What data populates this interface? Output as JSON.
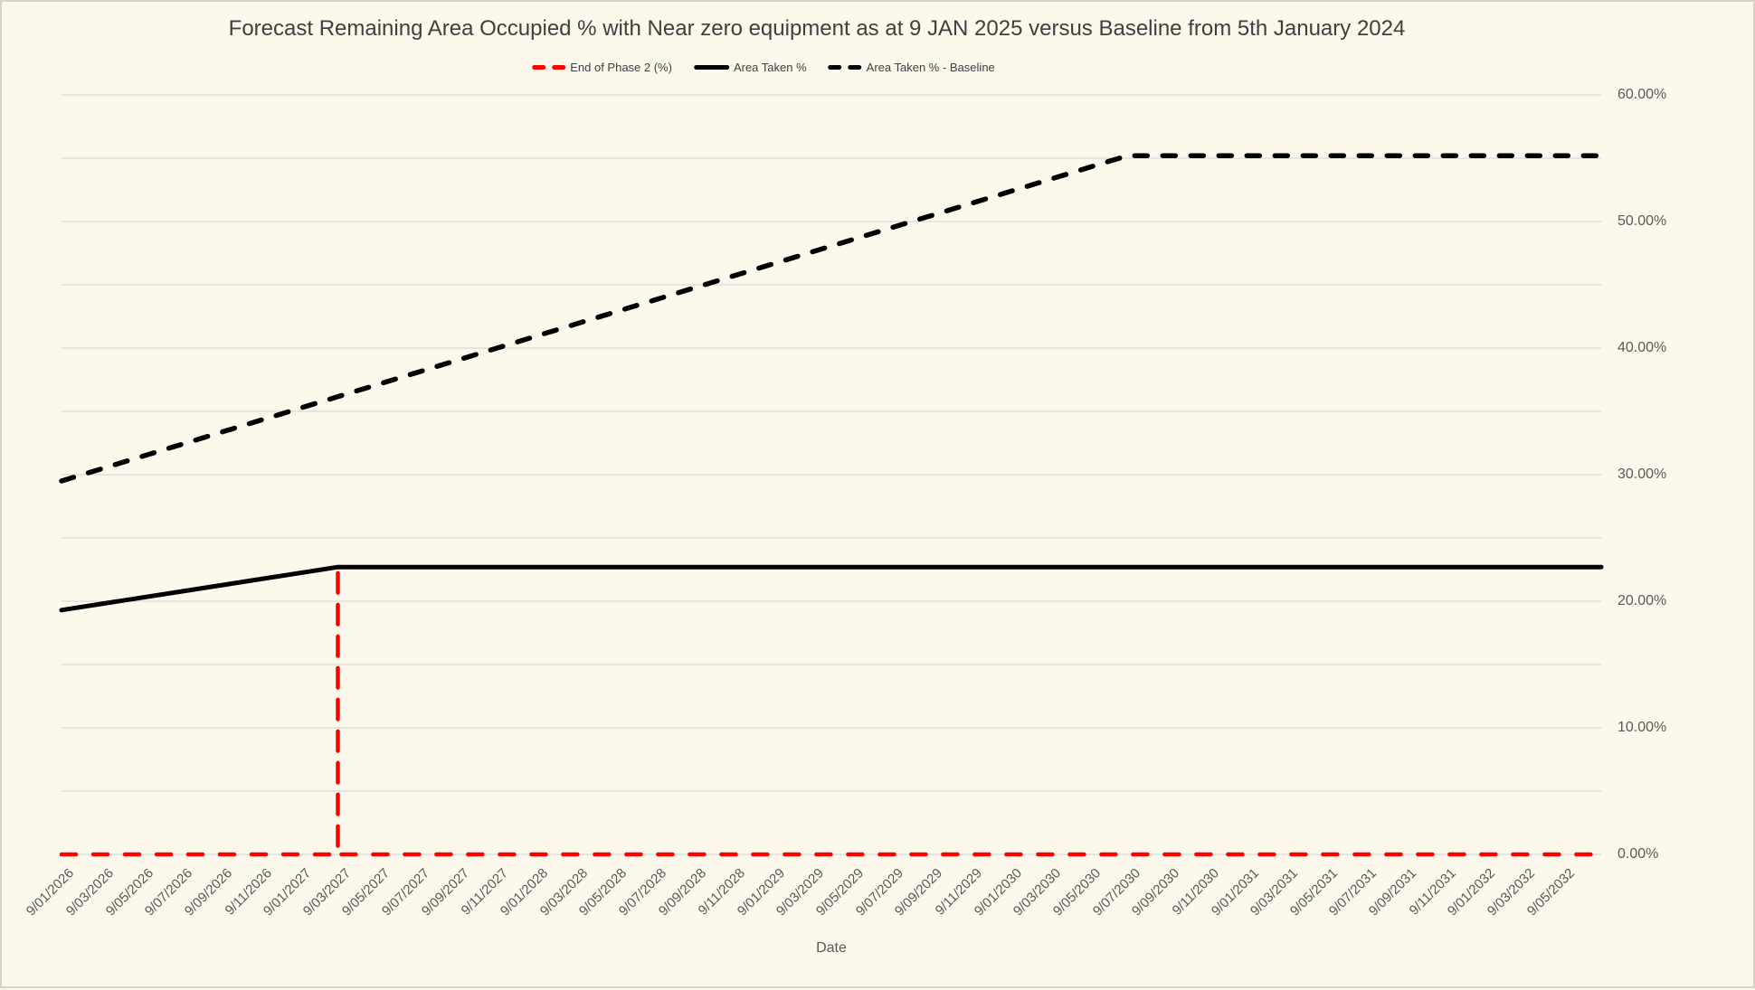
{
  "title": "Forecast Remaining Area Occupied % with Near zero equipment as at 9 JAN 2025 versus Baseline from 5th January 2024",
  "x_axis_title": "Date",
  "legend": {
    "position": "top-center",
    "items": [
      {
        "label": "End of Phase 2 (%)"
      },
      {
        "label": "Area Taken %"
      },
      {
        "label": "Area Taken % - Baseline"
      }
    ]
  },
  "colors": {
    "background": "#FDF8EC",
    "gridline": "#D9D9D9",
    "axis_text": "#595959",
    "title_text": "#3F3F3F",
    "red_series": "#FF0000",
    "black_series": "#000000"
  },
  "chart_data": {
    "type": "line",
    "title": "Forecast Remaining Area Occupied % with Near zero equipment as at 9 JAN 2025 versus Baseline from 5th January 2024",
    "xlabel": "Date",
    "ylabel": "",
    "ylim": [
      0,
      60
    ],
    "y_unit": "percent",
    "y_tick_labels": [
      "0.00%",
      "10.00%",
      "20.00%",
      "30.00%",
      "40.00%",
      "50.00%",
      "60.00%"
    ],
    "y_label_step_percent": 10,
    "y_gridline_step_percent": 5,
    "grid": "horizontal gridlines only",
    "legend_position": "top-center",
    "categories": [
      "9/01/2026",
      "9/03/2026",
      "9/05/2026",
      "9/07/2026",
      "9/09/2026",
      "9/11/2026",
      "9/01/2027",
      "9/03/2027",
      "9/05/2027",
      "9/07/2027",
      "9/09/2027",
      "9/11/2027",
      "9/01/2028",
      "9/03/2028",
      "9/05/2028",
      "9/07/2028",
      "9/09/2028",
      "9/11/2028",
      "9/01/2029",
      "9/03/2029",
      "9/05/2029",
      "9/07/2029",
      "9/09/2029",
      "9/11/2029",
      "9/01/2030",
      "9/03/2030",
      "9/05/2030",
      "9/07/2030",
      "9/09/2030",
      "9/11/2030",
      "9/01/2031",
      "9/03/2031",
      "9/05/2031",
      "9/07/2031",
      "9/09/2031",
      "9/11/2031",
      "9/01/2032",
      "9/03/2032",
      "9/05/2032"
    ],
    "x_note": "series x values are category indices: 0 = 9/01/2026 ... 38 = 9/05/2032; the plotted data extends one slot past the last label (index 39)",
    "series": [
      {
        "id": "end-of-phase-2",
        "name": "End of Phase 2 (%)",
        "color": "#FF0000",
        "line_style": "dashed",
        "points": [
          [
            0,
            0
          ],
          [
            7,
            0
          ],
          [
            7,
            22.7
          ],
          [
            7,
            0
          ],
          [
            39,
            0
          ]
        ],
        "description": "flat at 0% along the bottom with a vertical dashed spike up to 22.7% at 9/03/2027"
      },
      {
        "id": "area-taken",
        "name": "Area Taken %",
        "color": "#000000",
        "line_style": "solid",
        "points": [
          [
            0,
            19.3
          ],
          [
            7,
            22.7
          ],
          [
            39,
            22.7
          ]
        ],
        "description": "rises from 19.3% at 9/01/2026 to 22.7% at 9/03/2027, then flat at 22.7% to the end"
      },
      {
        "id": "area-taken-baseline",
        "name": "Area Taken % - Baseline",
        "color": "#000000",
        "line_style": "dashed",
        "points": [
          [
            0,
            29.5
          ],
          [
            27,
            55.2
          ],
          [
            39,
            55.2
          ]
        ],
        "description": "rises from 29.5% at 9/01/2026 to 55.2% at 9/07/2030, then flat at 55.2% to the end"
      }
    ]
  }
}
